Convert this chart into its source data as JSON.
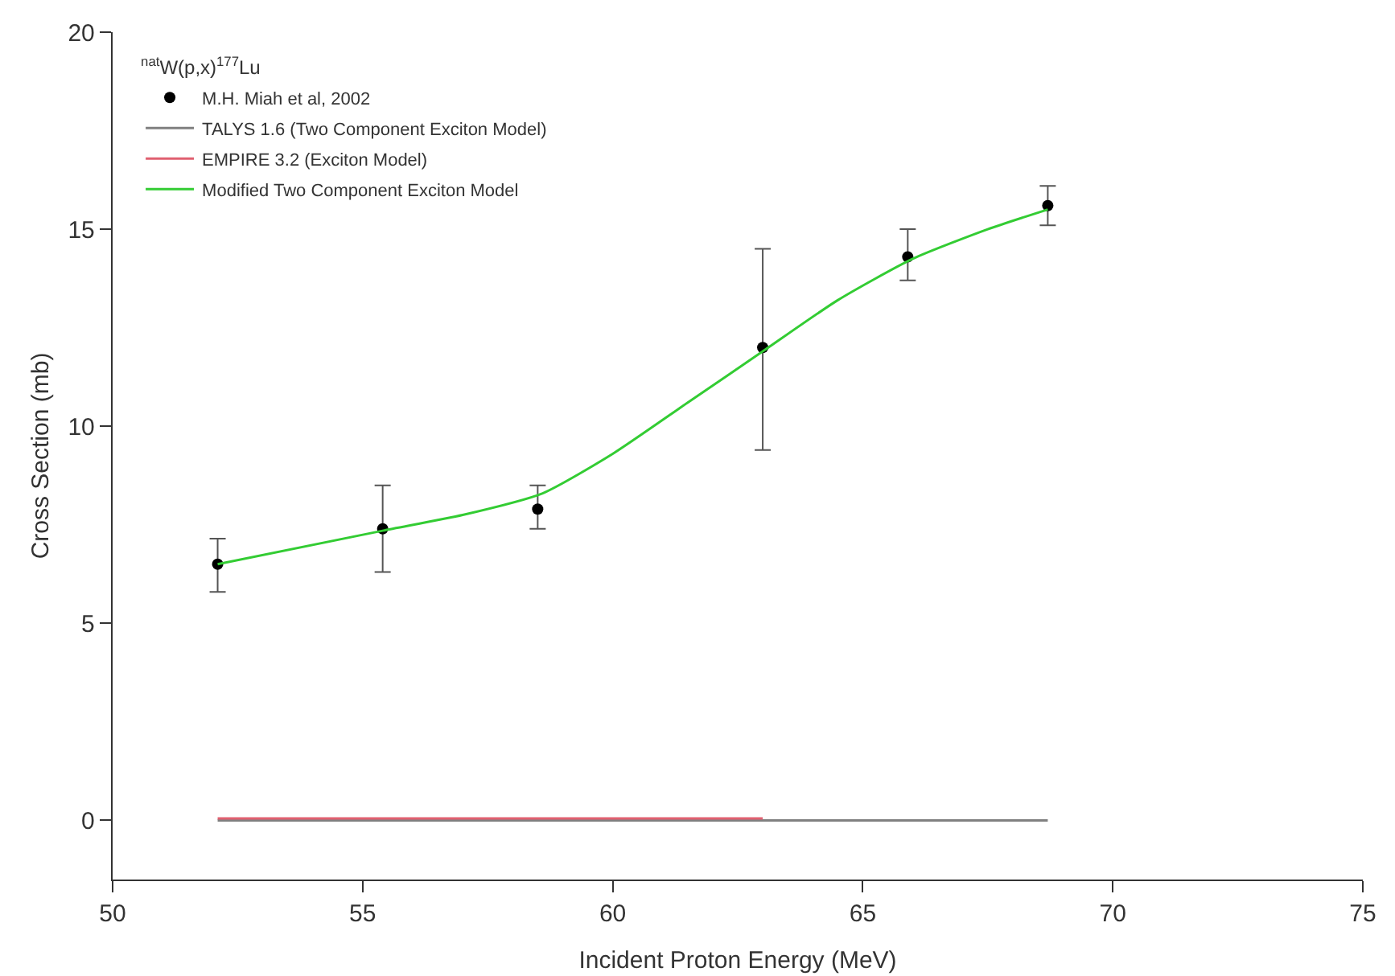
{
  "chart_data": {
    "type": "line",
    "xlabel": "Incident Proton Energy (MeV)",
    "ylabel": "Cross Section (mb)",
    "legend_title": "$^{nat}$W(p,x)$^{177}$Lu",
    "xlim": [
      50,
      75
    ],
    "xticks": [
      50,
      55,
      60,
      65,
      70,
      75
    ],
    "ylim": [
      -1.5,
      20
    ],
    "yticks": [
      0,
      5,
      10,
      15,
      20
    ],
    "grid": false,
    "legend": "top left",
    "series": [
      {
        "name": "M.H. Miah et al, 2002",
        "type": "scatter",
        "marker": "circle",
        "color": "#000000",
        "x": [
          52.1,
          55.4,
          58.5,
          63.0,
          65.9,
          68.7
        ],
        "values": [
          6.5,
          7.4,
          7.9,
          12.0,
          14.3,
          15.6
        ],
        "errors": [
          [
            5.8,
            7.15
          ],
          [
            6.3,
            8.5
          ],
          [
            7.4,
            8.5
          ],
          [
            9.4,
            14.5
          ],
          [
            13.7,
            15.0
          ],
          [
            15.1,
            16.1
          ]
        ]
      },
      {
        "name": "TALYS 1.6 (Two Component Exciton Model)",
        "marker": "none",
        "color": "#808080",
        "x": [
          52.1,
          68.7
        ],
        "values": [
          0,
          0
        ]
      },
      {
        "name": "EMPIRE 3.2 (Exciton Model)",
        "marker": "none",
        "color": "#e06070",
        "x": [
          52.1,
          63.0
        ],
        "values": [
          0.05,
          0.05
        ]
      },
      {
        "name": "Modified Two Component Exciton Model",
        "marker": "none",
        "color": "#33cc33",
        "x": [
          52.1,
          55.4,
          57,
          58.6,
          60,
          61.5,
          63,
          64.5,
          66,
          67.5,
          68.7
        ],
        "values": [
          6.5,
          7.35,
          7.75,
          8.3,
          9.3,
          10.6,
          11.9,
          13.2,
          14.25,
          15.0,
          15.5
        ]
      }
    ]
  }
}
